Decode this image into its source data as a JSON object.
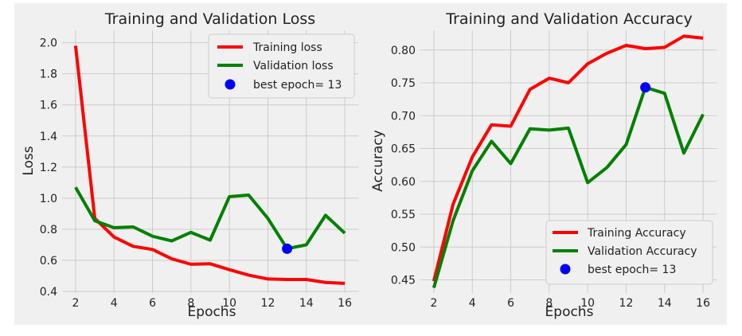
{
  "colors": {
    "figure_bg": "#f0f0f0",
    "axes_bg": "#f0f0f0",
    "grid": "#cbcbcb",
    "training": "#ff0000",
    "validation": "#008000",
    "best_marker": "#0000ff"
  },
  "chart_data": [
    {
      "type": "line",
      "title": "Training and Validation Loss",
      "xlabel": "Epochs",
      "ylabel": "Loss",
      "xlim": [
        1.3,
        16.7
      ],
      "ylim": [
        0.39,
        2.08
      ],
      "x_ticks": [
        2,
        4,
        6,
        8,
        10,
        12,
        14,
        16
      ],
      "y_ticks": [
        0.4,
        0.6,
        0.8,
        1.0,
        1.2,
        1.4,
        1.6,
        1.8,
        2.0
      ],
      "y_tick_labels": [
        "0.4",
        "0.6",
        "0.8",
        "1.0",
        "1.2",
        "1.4",
        "1.6",
        "1.8",
        "2.0"
      ],
      "grid": true,
      "legend_position": "top-right",
      "x": [
        2,
        3,
        4,
        5,
        6,
        7,
        8,
        9,
        10,
        11,
        12,
        13,
        14,
        15,
        16
      ],
      "series": [
        {
          "name": "Training loss",
          "color": "#ff0000",
          "values": [
            1.98,
            0.87,
            0.75,
            0.69,
            0.67,
            0.61,
            0.575,
            0.578,
            0.54,
            0.505,
            0.48,
            0.477,
            0.477,
            0.458,
            0.452
          ]
        },
        {
          "name": "Validation loss",
          "color": "#008000",
          "values": [
            1.07,
            0.855,
            0.81,
            0.815,
            0.755,
            0.725,
            0.78,
            0.73,
            1.01,
            1.02,
            0.87,
            0.675,
            0.7,
            0.89,
            0.775
          ]
        }
      ],
      "best_point": {
        "label": "best epoch= 13",
        "x": 13,
        "y": 0.675,
        "color": "#0000ff"
      }
    },
    {
      "type": "line",
      "title": "Training and Validation Accuracy",
      "xlabel": "Epochs",
      "ylabel": "Accuracy",
      "xlim": [
        1.3,
        16.7
      ],
      "ylim": [
        0.43,
        0.83
      ],
      "x_ticks": [
        2,
        4,
        6,
        8,
        10,
        12,
        14,
        16
      ],
      "y_ticks": [
        0.45,
        0.5,
        0.55,
        0.6,
        0.65,
        0.7,
        0.75,
        0.8
      ],
      "y_tick_labels": [
        "0.45",
        "0.50",
        "0.55",
        "0.60",
        "0.65",
        "0.70",
        "0.75",
        "0.80"
      ],
      "grid": true,
      "legend_position": "lower-right",
      "x": [
        2,
        3,
        4,
        5,
        6,
        7,
        8,
        9,
        10,
        11,
        12,
        13,
        14,
        15,
        16
      ],
      "series": [
        {
          "name": "Training Accuracy",
          "color": "#ff0000",
          "values": [
            0.448,
            0.565,
            0.637,
            0.686,
            0.684,
            0.74,
            0.757,
            0.75,
            0.779,
            0.795,
            0.807,
            0.802,
            0.804,
            0.821,
            0.818
          ]
        },
        {
          "name": "Validation Accuracy",
          "color": "#008000",
          "values": [
            0.438,
            0.54,
            0.616,
            0.661,
            0.627,
            0.68,
            0.678,
            0.681,
            0.598,
            0.621,
            0.656,
            0.743,
            0.734,
            0.643,
            0.702
          ]
        }
      ],
      "best_point": {
        "label": "best epoch= 13",
        "x": 13,
        "y": 0.743,
        "color": "#0000ff"
      }
    }
  ]
}
